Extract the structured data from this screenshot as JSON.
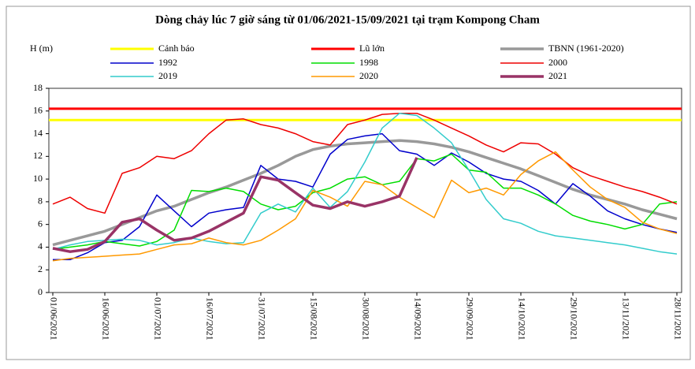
{
  "chart_data": {
    "type": "line",
    "title": "Dòng chảy lúc 7 giờ sáng từ 01/06/2021-15/09/2021 tại trạm Kompong Cham",
    "y_label": "H (m)",
    "categories": [
      "01/06/2021",
      null,
      null,
      "16/06/2021",
      null,
      null,
      "01/07/2021",
      null,
      null,
      "16/07/2021",
      null,
      null,
      "31/07/2021",
      null,
      null,
      "15/08/2021",
      null,
      null,
      "30/08/2021",
      null,
      null,
      "14/09/2021",
      null,
      null,
      "29/09/2021",
      null,
      null,
      "14/10/2021",
      null,
      null,
      "29/10/2021",
      null,
      null,
      "13/11/2021",
      null,
      null,
      "28/11/2021"
    ],
    "ylim": [
      0,
      18
    ],
    "yticks": [
      0,
      2,
      4,
      6,
      8,
      10,
      12,
      14,
      16,
      18
    ],
    "series": [
      {
        "name": "Cảnh báo",
        "color": "#ffff00",
        "width": 3,
        "level": 15.2
      },
      {
        "name": "Lũ lớn",
        "color": "#ff0000",
        "width": 3,
        "level": 16.2
      },
      {
        "name": "TBNN (1961-2020)",
        "color": "#999999",
        "width": 3.5,
        "values": [
          4.2,
          4.6,
          5.0,
          5.4,
          6.0,
          6.6,
          7.2,
          7.6,
          8.2,
          8.8,
          9.3,
          9.9,
          10.5,
          11.2,
          12.0,
          12.6,
          12.9,
          13.1,
          13.2,
          13.3,
          13.4,
          13.3,
          13.1,
          12.8,
          12.4,
          11.9,
          11.4,
          10.9,
          10.3,
          9.7,
          9.1,
          8.6,
          8.2,
          7.8,
          7.3,
          6.9,
          6.5
        ]
      },
      {
        "name": "1992",
        "color": "#0000cc",
        "width": 1.5,
        "values": [
          2.9,
          2.9,
          3.5,
          4.4,
          4.6,
          5.8,
          8.6,
          7.2,
          5.8,
          7.0,
          7.3,
          7.5,
          11.2,
          10.0,
          9.8,
          9.3,
          12.2,
          13.5,
          13.8,
          14.0,
          12.5,
          12.2,
          11.2,
          12.3,
          11.5,
          10.5,
          10.0,
          9.8,
          9.0,
          7.8,
          9.6,
          8.5,
          7.2,
          6.5,
          6.0,
          5.6,
          5.3
        ]
      },
      {
        "name": "1998",
        "color": "#00dd00",
        "width": 1.5,
        "values": [
          3.8,
          4.0,
          4.2,
          4.5,
          4.3,
          4.1,
          4.5,
          5.5,
          9.0,
          8.9,
          9.2,
          8.9,
          7.8,
          7.3,
          7.6,
          8.8,
          9.2,
          10.0,
          10.2,
          9.5,
          9.8,
          11.8,
          11.6,
          12.2,
          10.8,
          10.6,
          9.2,
          9.2,
          8.6,
          7.8,
          6.8,
          6.3,
          6.0,
          5.6,
          6.0,
          7.8,
          8.0
        ]
      },
      {
        "name": "2000",
        "color": "#ee0000",
        "width": 1.5,
        "values": [
          7.8,
          8.4,
          7.4,
          7.0,
          10.5,
          11.0,
          12.0,
          11.8,
          12.5,
          14.0,
          15.2,
          15.3,
          14.8,
          14.5,
          14.0,
          13.3,
          13.0,
          14.8,
          15.2,
          15.7,
          15.8,
          15.8,
          15.2,
          14.5,
          13.8,
          13.0,
          12.4,
          13.2,
          13.1,
          12.2,
          11.0,
          10.3,
          9.8,
          9.3,
          8.9,
          8.4,
          7.8
        ]
      },
      {
        "name": "2019",
        "color": "#33cccc",
        "width": 1.5,
        "values": [
          3.8,
          4.2,
          4.5,
          4.6,
          4.7,
          4.6,
          4.2,
          4.4,
          4.8,
          4.5,
          4.3,
          4.4,
          7.0,
          7.8,
          7.1,
          9.2,
          7.5,
          8.9,
          11.5,
          14.5,
          15.8,
          15.6,
          14.5,
          13.2,
          10.8,
          8.2,
          6.5,
          6.1,
          5.4,
          5.0,
          4.8,
          4.6,
          4.4,
          4.2,
          3.9,
          3.6,
          3.4
        ]
      },
      {
        "name": "2020",
        "color": "#ff9900",
        "width": 1.5,
        "values": [
          2.8,
          3.0,
          3.1,
          3.2,
          3.3,
          3.4,
          3.8,
          4.2,
          4.3,
          4.8,
          4.4,
          4.2,
          4.6,
          5.5,
          6.5,
          9.0,
          8.4,
          7.6,
          9.8,
          9.5,
          8.4,
          7.5,
          6.6,
          9.9,
          8.8,
          9.2,
          8.6,
          10.4,
          11.6,
          12.4,
          10.8,
          9.3,
          8.2,
          7.5,
          6.2,
          5.6,
          5.2
        ]
      },
      {
        "name": "2021",
        "color": "#993366",
        "width": 3.5,
        "values": [
          3.9,
          3.6,
          3.8,
          4.5,
          6.2,
          6.5,
          5.5,
          4.6,
          4.8,
          5.4,
          6.2,
          7.0,
          10.2,
          9.9,
          8.8,
          7.7,
          7.4,
          8.0,
          7.6,
          8.0,
          8.5,
          11.9,
          null,
          null,
          null,
          null,
          null,
          null,
          null,
          null,
          null,
          null,
          null,
          null,
          null,
          null,
          null
        ]
      }
    ]
  }
}
